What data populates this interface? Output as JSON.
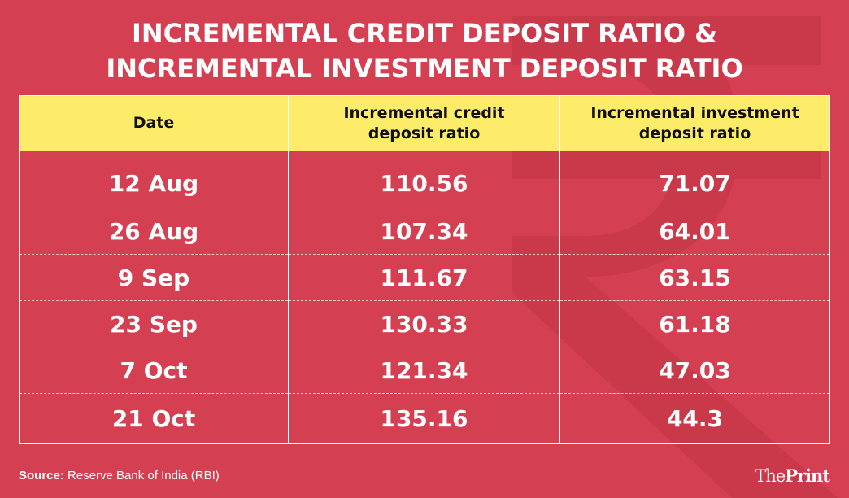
{
  "chart_data": {
    "type": "table",
    "title": "INCREMENTAL CREDIT DEPOSIT RATIO & INCREMENTAL INVESTMENT DEPOSIT RATIO",
    "title_line1": "INCREMENTAL CREDIT DEPOSIT RATIO &",
    "title_line2": "INCREMENTAL INVESTMENT DEPOSIT RATIO",
    "columns": [
      "Date",
      "Incremental credit deposit ratio",
      "Incremental investment deposit ratio"
    ],
    "rows": [
      [
        "12 Aug",
        "110.56",
        "71.07"
      ],
      [
        "26 Aug",
        "107.34",
        "64.01"
      ],
      [
        "9 Sep",
        "111.67",
        "63.15"
      ],
      [
        "23 Sep",
        "130.33",
        "61.18"
      ],
      [
        "7 Oct",
        "121.34",
        "47.03"
      ],
      [
        "21 Oct",
        "135.16",
        "44.3"
      ]
    ]
  },
  "footer": {
    "source_label": "Source:",
    "source_text": " Reserve Bank of India (RBI)",
    "logo_the": "The",
    "logo_print": "Print"
  },
  "colors": {
    "background": "#d43f52",
    "header": "#fdeb6a",
    "text": "#ffffff"
  },
  "icons": {
    "watermark": "rupee-icon"
  }
}
